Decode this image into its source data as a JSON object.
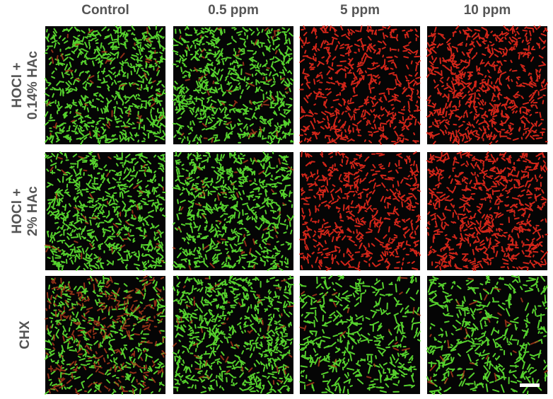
{
  "columns": [
    "Control",
    "0.5 ppm",
    "5 ppm",
    "10 ppm"
  ],
  "rows": [
    [
      "HOCl +",
      "0.14% HAc"
    ],
    [
      "HOCl +",
      "2% HAc"
    ],
    [
      "CHX"
    ]
  ]
}
